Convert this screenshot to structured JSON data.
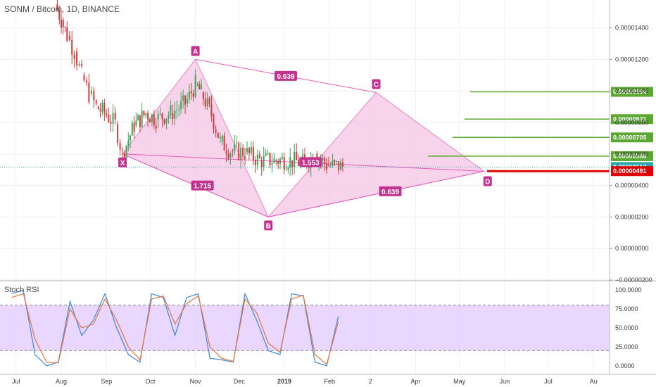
{
  "header": {
    "symbol": "SONM / Bitcoin, 1D, BINANCE",
    "indicator": "Stoch RSI"
  },
  "colors": {
    "pattern_fill": "#f5c6e6",
    "pattern_line": "#e35ab8",
    "marker": "#c2338f",
    "candle_up": "#3aa65a",
    "candle_down": "#d23a3a",
    "target_green": "#5aa832",
    "stop_red": "#e00000",
    "current_teal": "#2aa6a6",
    "stoch_band": "#e2c9ff",
    "stoch_k": "#3b88d8",
    "stoch_d": "#e8743b"
  },
  "chart_data": [
    {
      "type": "candlestick",
      "title": "SONM / Bitcoin, 1D, BINANCE",
      "x_ticks": [
        "Jul",
        "Aug",
        "Sep",
        "Oct",
        "Nov",
        "Dec",
        "2019",
        "Feb",
        "2",
        "Apr",
        "May",
        "Jun",
        "Jul",
        "Au"
      ],
      "y_ticks": [
        "0.00001400",
        "0.00001200",
        "0.00001000",
        "0.00000800",
        "0.00000600",
        "0.00000400",
        "0.00000200",
        "0.00000000",
        "−0.00000200"
      ],
      "ylim": [
        -2e-06,
        1.55e-05
      ],
      "price_series": [
        {
          "x": "2018-07-28",
          "y": 1.55e-05
        },
        {
          "x": "2018-08-01",
          "y": 1.45e-05
        },
        {
          "x": "2018-08-05",
          "y": 1.35e-05
        },
        {
          "x": "2018-08-10",
          "y": 1.25e-05
        },
        {
          "x": "2018-08-15",
          "y": 1.1e-05
        },
        {
          "x": "2018-08-20",
          "y": 9.8e-06
        },
        {
          "x": "2018-08-25",
          "y": 9e-06
        },
        {
          "x": "2018-09-01",
          "y": 8.5e-06
        },
        {
          "x": "2018-09-07",
          "y": 7.9e-06
        },
        {
          "x": "2018-09-12",
          "y": 6e-06
        },
        {
          "x": "2018-09-20",
          "y": 7.8e-06
        },
        {
          "x": "2018-09-28",
          "y": 8.6e-06
        },
        {
          "x": "2018-10-05",
          "y": 8.2e-06
        },
        {
          "x": "2018-10-15",
          "y": 8.6e-06
        },
        {
          "x": "2018-10-25",
          "y": 9.2e-06
        },
        {
          "x": "2018-11-01",
          "y": 1.04e-05
        },
        {
          "x": "2018-11-05",
          "y": 9.9e-06
        },
        {
          "x": "2018-11-12",
          "y": 8.5e-06
        },
        {
          "x": "2018-11-18",
          "y": 6.8e-06
        },
        {
          "x": "2018-11-25",
          "y": 6.2e-06
        },
        {
          "x": "2018-12-05",
          "y": 6.1e-06
        },
        {
          "x": "2018-12-15",
          "y": 5.6e-06
        },
        {
          "x": "2018-12-25",
          "y": 5.6e-06
        },
        {
          "x": "2019-01-05",
          "y": 5.6e-06
        },
        {
          "x": "2019-01-15",
          "y": 5.4e-06
        },
        {
          "x": "2019-01-22",
          "y": 6e-06
        },
        {
          "x": "2019-01-30",
          "y": 5.3e-06
        },
        {
          "x": "2019-02-10",
          "y": 5.2e-06
        }
      ],
      "harmonic_pattern": {
        "points": [
          {
            "label": "X",
            "x": "2018-09-12",
            "y": 6e-06
          },
          {
            "label": "A",
            "x": "2018-11-01",
            "y": 1.2e-05
          },
          {
            "label": "B",
            "x": "2018-12-21",
            "y": 2e-06
          },
          {
            "label": "C",
            "x": "2019-03-05",
            "y": 9.9e-06
          },
          {
            "label": "D",
            "x": "2019-05-18",
            "y": 4.9e-06
          }
        ],
        "ratios": [
          {
            "label": "0.639",
            "between": "X-C"
          },
          {
            "label": "1.715",
            "between": "X-B"
          },
          {
            "label": "0.639",
            "between": "B-D"
          },
          {
            "label": "1.553",
            "between": "B-D"
          }
        ]
      },
      "price_levels": [
        {
          "label": "0.00000994",
          "value": 9.94e-06,
          "kind": "target"
        },
        {
          "label": "0.00000821",
          "value": 8.21e-06,
          "kind": "target"
        },
        {
          "label": "0.00000705",
          "value": 7.05e-06,
          "kind": "target"
        },
        {
          "label": "0.00000586",
          "value": 5.86e-06,
          "kind": "target"
        },
        {
          "label": "0.00000517",
          "value": 5.17e-06,
          "kind": "current"
        },
        {
          "label": "0.00000491",
          "value": 4.91e-06,
          "kind": "stop"
        }
      ]
    },
    {
      "type": "line",
      "title": "Stoch RSI",
      "y_ticks": [
        "100.0000",
        "75.0000",
        "50.0000",
        "25.0000",
        "0.0000"
      ],
      "ylim": [
        0,
        100
      ],
      "band": [
        20,
        80
      ],
      "series": [
        {
          "name": "K",
          "x": [
            "2018-06-28",
            "2018-07-06",
            "2018-07-14",
            "2018-07-22",
            "2018-07-30",
            "2018-08-07",
            "2018-08-15",
            "2018-08-23",
            "2018-08-31",
            "2018-09-08",
            "2018-09-16",
            "2018-09-24",
            "2018-10-02",
            "2018-10-10",
            "2018-10-18",
            "2018-10-26",
            "2018-11-03",
            "2018-11-11",
            "2018-11-19",
            "2018-11-27",
            "2018-12-05",
            "2018-12-13",
            "2018-12-21",
            "2018-12-29",
            "2019-01-06",
            "2019-01-14",
            "2019-01-22",
            "2019-01-30",
            "2019-02-07"
          ],
          "values": [
            95,
            100,
            15,
            0,
            5,
            85,
            40,
            60,
            95,
            50,
            15,
            5,
            95,
            90,
            40,
            90,
            95,
            10,
            8,
            5,
            95,
            60,
            20,
            15,
            95,
            92,
            5,
            0,
            65
          ]
        },
        {
          "name": "D",
          "x": [
            "2018-06-28",
            "2018-07-06",
            "2018-07-14",
            "2018-07-22",
            "2018-07-30",
            "2018-08-07",
            "2018-08-15",
            "2018-08-23",
            "2018-08-31",
            "2018-09-08",
            "2018-09-16",
            "2018-09-24",
            "2018-10-02",
            "2018-10-10",
            "2018-10-18",
            "2018-10-26",
            "2018-11-03",
            "2018-11-11",
            "2018-11-19",
            "2018-11-27",
            "2018-12-05",
            "2018-12-13",
            "2018-12-21",
            "2018-12-29",
            "2019-01-06",
            "2019-01-14",
            "2019-01-22",
            "2019-01-30",
            "2019-02-07"
          ],
          "values": [
            90,
            95,
            35,
            5,
            4,
            75,
            50,
            55,
            88,
            60,
            25,
            8,
            88,
            92,
            55,
            82,
            92,
            25,
            10,
            6,
            88,
            70,
            30,
            18,
            88,
            93,
            15,
            2,
            58
          ]
        }
      ]
    }
  ]
}
